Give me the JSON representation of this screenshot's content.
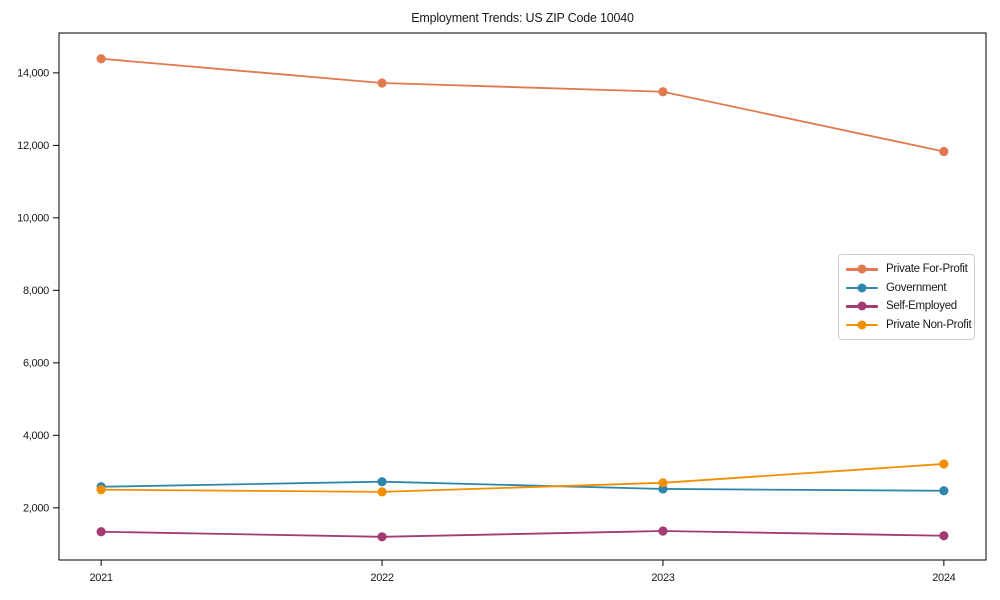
{
  "title": "Employment Trends: US ZIP Code 10040",
  "chart_data": {
    "type": "line",
    "x": [
      2021,
      2022,
      2023,
      2024
    ],
    "x_tick_labels": [
      "2021",
      "2022",
      "2023",
      "2024"
    ],
    "yticks": [
      2000,
      4000,
      6000,
      8000,
      10000,
      12000,
      14000
    ],
    "xlim": [
      2020.85,
      2024.15
    ],
    "ylim": [
      560,
      15100
    ],
    "grid": false,
    "legend_position": "center-right",
    "xlabel": "",
    "ylabel": "",
    "series": [
      {
        "name": "Private For-Profit",
        "color": "#E27850",
        "values": [
          14390,
          13720,
          13480,
          11830
        ]
      },
      {
        "name": "Government",
        "color": "#2E86AB",
        "values": [
          2580,
          2720,
          2520,
          2470
        ]
      },
      {
        "name": "Self-Employed",
        "color": "#A23B72",
        "values": [
          1340,
          1200,
          1360,
          1230
        ]
      },
      {
        "name": "Private Non-Profit",
        "color": "#F18F01",
        "values": [
          2500,
          2440,
          2690,
          3210
        ]
      }
    ]
  }
}
